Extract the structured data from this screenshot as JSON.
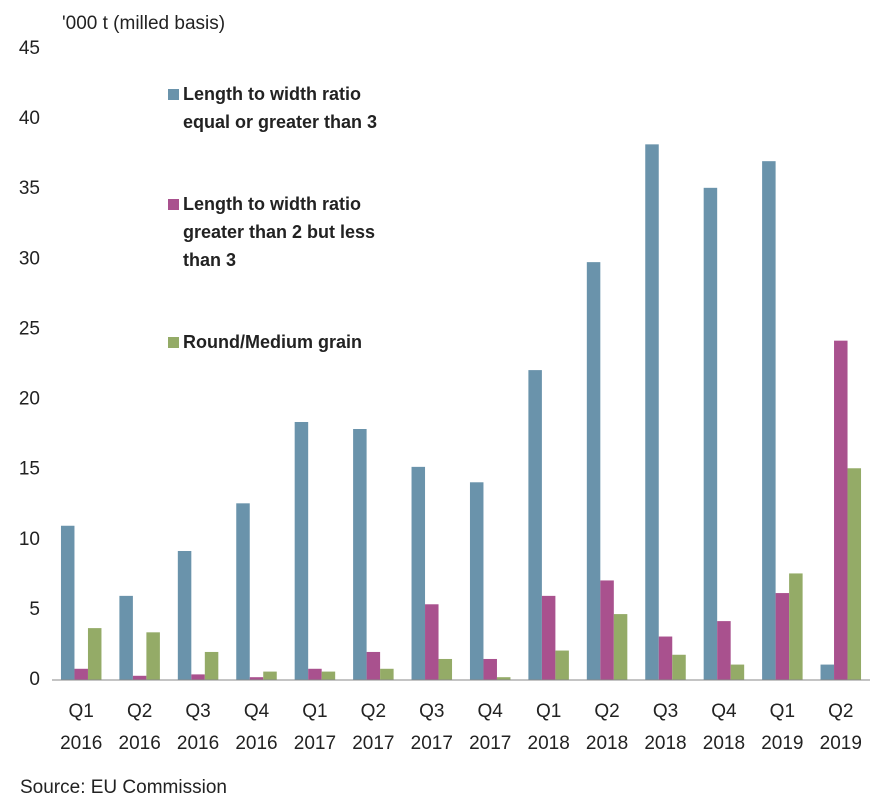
{
  "chart_data": {
    "type": "bar",
    "y_axis_label": "'000 t (milled basis)",
    "source": "Source: EU Commission",
    "categories": [
      "Q1 2016",
      "Q2 2016",
      "Q3 2016",
      "Q4 2016",
      "Q1 2017",
      "Q2 2017",
      "Q3 2017",
      "Q4 2017",
      "Q1 2018",
      "Q2 2018",
      "Q3 2018",
      "Q4 2018",
      "Q1 2019",
      "Q2 2019"
    ],
    "series": [
      {
        "name": "Length to width ratio equal or greater than 3",
        "color": "#6a93ab",
        "values": [
          11,
          6,
          9.2,
          12.6,
          18.4,
          17.9,
          15.2,
          14.1,
          22.1,
          29.8,
          38.2,
          35.1,
          37,
          1.1
        ]
      },
      {
        "name": "Length to width ratio greater than 2 but less than 3",
        "color": "#a9518e",
        "values": [
          0.8,
          0.3,
          0.4,
          0.2,
          0.8,
          2.0,
          5.4,
          1.5,
          6.0,
          7.1,
          3.1,
          4.2,
          6.2,
          24.2
        ]
      },
      {
        "name": "Round/Medium grain",
        "color": "#94ab67",
        "values": [
          3.7,
          3.4,
          2.0,
          0.6,
          0.6,
          0.8,
          1.5,
          0.2,
          2.1,
          4.7,
          1.8,
          1.1,
          7.6,
          15.1
        ]
      }
    ],
    "ylim": [
      0,
      45
    ],
    "yticks": [
      0,
      5,
      10,
      15,
      20,
      25,
      30,
      35,
      40,
      45
    ],
    "grid": false
  }
}
